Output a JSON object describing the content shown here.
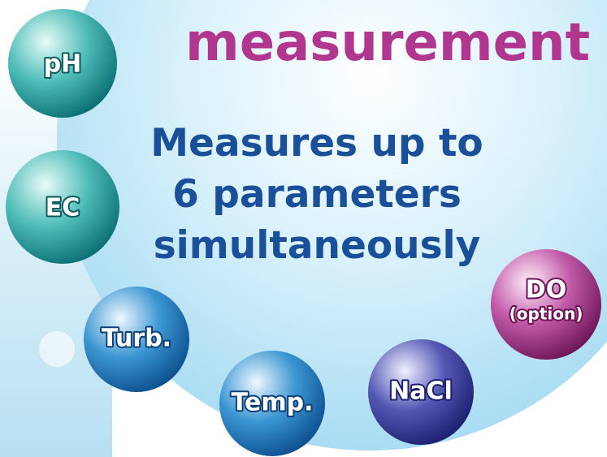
{
  "title": "measurement",
  "headline": [
    "Measures up to",
    "6 parameters",
    "simultaneously"
  ],
  "bubbles": [
    {
      "label": "pH"
    },
    {
      "label": "EC"
    },
    {
      "label": "Turb."
    },
    {
      "label": "Temp."
    },
    {
      "label": "NaCl"
    },
    {
      "label": "DO",
      "sublabel": "(option)"
    }
  ]
}
